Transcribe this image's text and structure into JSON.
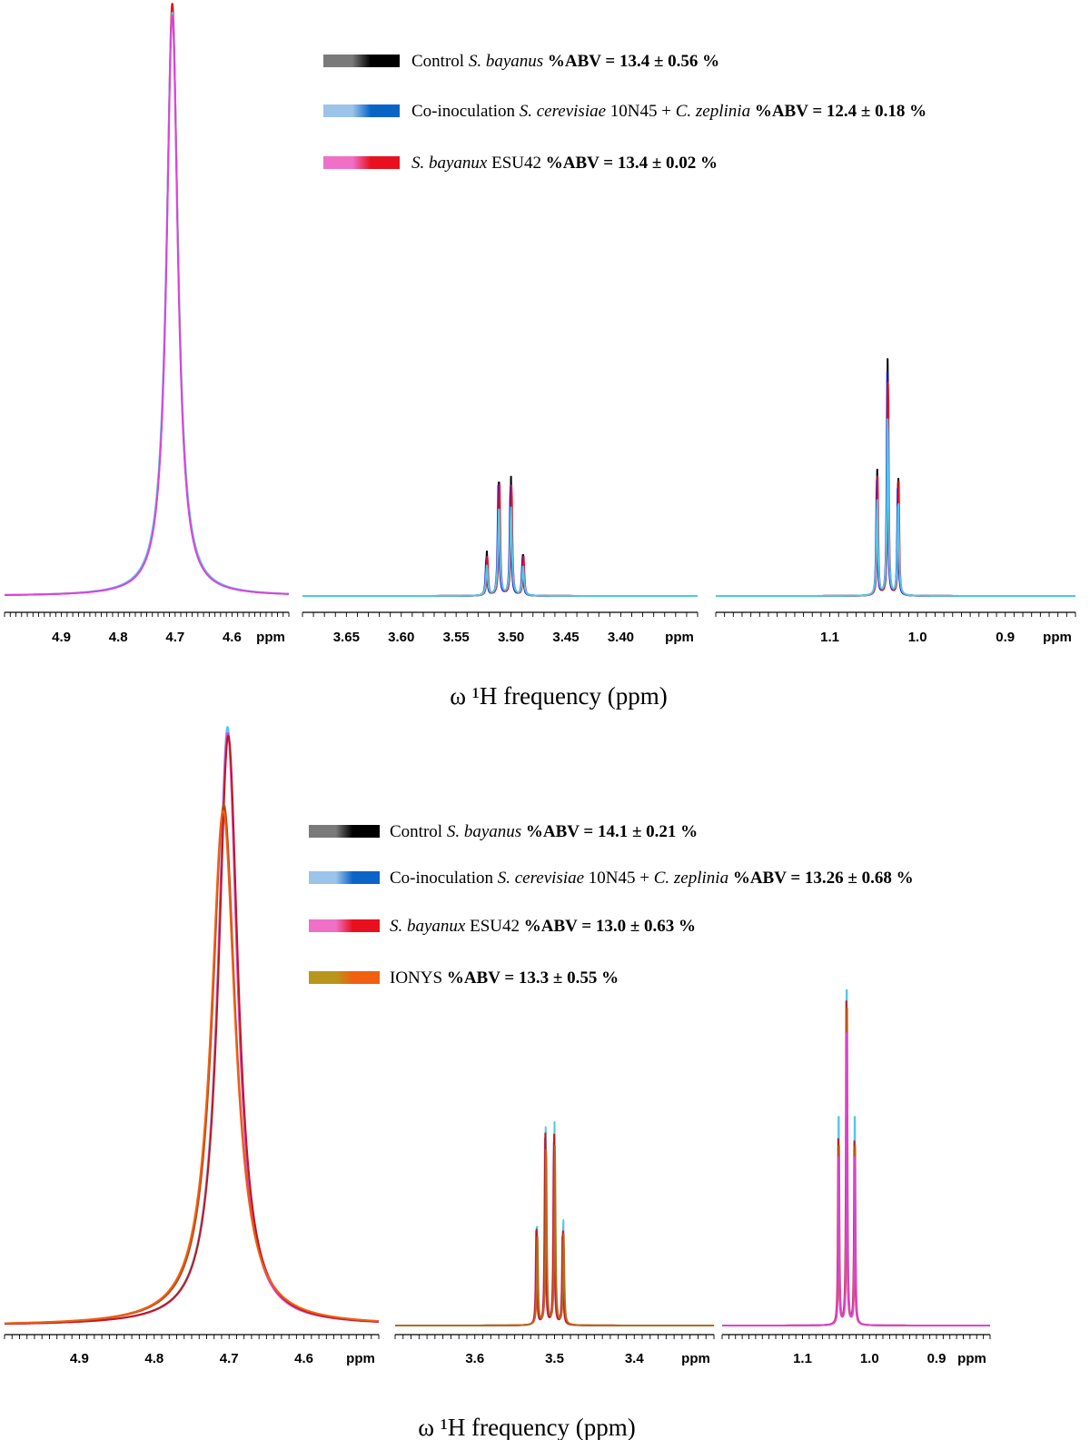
{
  "chart_data": [
    {
      "type": "line",
      "title": "",
      "xlabel": "ω ¹H frequency (ppm)",
      "ylabel": "",
      "grid": false,
      "legend_position": "top-right",
      "series": [
        {
          "name": "Control S. bayanus %ABV = 13.4 ± 0.56 %",
          "color": "#000000"
        },
        {
          "name": "Co-inoculation S. cerevisiae 10N45 + C. zeplinia %ABV = 12.4 ± 0.18 %",
          "color": "#0a64c8"
        },
        {
          "name": "S. bayanux ESU42 %ABV = 13.4 ± 0.02 %",
          "color": "#e8101e"
        }
      ],
      "legend": [
        {
          "parts": [
            {
              "t": "Control ",
              "s": "n"
            },
            {
              "t": "S. bayanus",
              "s": "i"
            },
            {
              "t": " %ABV = 13.4 ± 0.56 %",
              "s": "b"
            }
          ],
          "colors": [
            "#7a7a7a",
            "#000000"
          ]
        },
        {
          "parts": [
            {
              "t": "Co-inoculation ",
              "s": "n"
            },
            {
              "t": "S. cerevisiae",
              "s": "i"
            },
            {
              "t": " 10N45 + ",
              "s": "n"
            },
            {
              "t": "C. zeplinia",
              "s": "i"
            },
            {
              "t": " %ABV = 12.4 ± 0.18 %",
              "s": "b"
            }
          ],
          "colors": [
            "#9cc4ea",
            "#0a64c8"
          ]
        },
        {
          "parts": [
            {
              "t": "S. bayanux",
              "s": "i"
            },
            {
              "t": " ESU42 ",
              "s": "n"
            },
            {
              "t": "%ABV = 13.4 ± 0.02 %",
              "s": "b"
            }
          ],
          "colors": [
            "#f070c8",
            "#e8101e"
          ]
        }
      ],
      "panels": [
        {
          "xrange": [
            4.5,
            5.0
          ],
          "ticks": [
            "4.9",
            "4.8",
            "4.7",
            "4.6",
            "ppm"
          ],
          "y_max": 1.0,
          "traces": [
            {
              "color": "#e8101e",
              "peaks": [
                {
                  "x": 4.705,
                  "h": 1.0,
                  "w": 0.012
                }
              ]
            },
            {
              "color": "#4fc8e8",
              "peaks": [
                {
                  "x": 4.705,
                  "h": 0.985,
                  "w": 0.0125
                }
              ]
            },
            {
              "color": "#e040d8",
              "peaks": [
                {
                  "x": 4.705,
                  "h": 0.98,
                  "w": 0.012
                }
              ]
            }
          ]
        },
        {
          "xrange": [
            3.33,
            3.69
          ],
          "ticks": [
            "3.65",
            "3.60",
            "3.55",
            "3.50",
            "3.45",
            "3.40",
            "ppm"
          ],
          "y_max": 1.0,
          "traces": [
            {
              "color": "#000000",
              "peaks": [
                {
                  "x": 3.522,
                  "h": 0.074,
                  "w": 0.0008
                },
                {
                  "x": 3.511,
                  "h": 0.202,
                  "w": 0.0008
                },
                {
                  "x": 3.5,
                  "h": 0.2,
                  "w": 0.0008
                },
                {
                  "x": 3.489,
                  "h": 0.072,
                  "w": 0.0008
                }
              ]
            },
            {
              "color": "#1a1ad8",
              "peaks": [
                {
                  "x": 3.5225,
                  "h": 0.065,
                  "w": 0.0008
                },
                {
                  "x": 3.5115,
                  "h": 0.188,
                  "w": 0.0008
                },
                {
                  "x": 3.5005,
                  "h": 0.186,
                  "w": 0.0008
                },
                {
                  "x": 3.4895,
                  "h": 0.064,
                  "w": 0.0008
                }
              ]
            },
            {
              "color": "#e8101e",
              "peaks": [
                {
                  "x": 3.5215,
                  "h": 0.066,
                  "w": 0.0008
                },
                {
                  "x": 3.5105,
                  "h": 0.19,
                  "w": 0.0008
                },
                {
                  "x": 3.4995,
                  "h": 0.188,
                  "w": 0.0008
                },
                {
                  "x": 3.4885,
                  "h": 0.066,
                  "w": 0.0008
                }
              ]
            },
            {
              "color": "#4fc8e8",
              "peaks": [
                {
                  "x": 3.522,
                  "h": 0.05,
                  "w": 0.001
                },
                {
                  "x": 3.511,
                  "h": 0.15,
                  "w": 0.001
                },
                {
                  "x": 3.5,
                  "h": 0.148,
                  "w": 0.001
                },
                {
                  "x": 3.489,
                  "h": 0.05,
                  "w": 0.001
                }
              ]
            }
          ]
        },
        {
          "xrange": [
            0.82,
            1.23
          ],
          "ticks": [
            "1.1",
            "1.0",
            "0.9",
            "ppm"
          ],
          "y_max": 1.0,
          "traces": [
            {
              "color": "#000000",
              "peaks": [
                {
                  "x": 1.046,
                  "h": 0.212,
                  "w": 0.0008
                },
                {
                  "x": 1.034,
                  "h": 0.406,
                  "w": 0.0008
                },
                {
                  "x": 1.022,
                  "h": 0.207,
                  "w": 0.0008
                }
              ]
            },
            {
              "color": "#1a1ad8",
              "peaks": [
                {
                  "x": 1.0465,
                  "h": 0.196,
                  "w": 0.0008
                },
                {
                  "x": 1.0345,
                  "h": 0.379,
                  "w": 0.0008
                },
                {
                  "x": 1.0225,
                  "h": 0.193,
                  "w": 0.0008
                }
              ]
            },
            {
              "color": "#e8101e",
              "peaks": [
                {
                  "x": 1.0455,
                  "h": 0.2,
                  "w": 0.0008
                },
                {
                  "x": 1.0335,
                  "h": 0.372,
                  "w": 0.0008
                },
                {
                  "x": 1.0215,
                  "h": 0.198,
                  "w": 0.0008
                }
              ]
            },
            {
              "color": "#4fc8e8",
              "peaks": [
                {
                  "x": 1.046,
                  "h": 0.16,
                  "w": 0.001
                },
                {
                  "x": 1.034,
                  "h": 0.3,
                  "w": 0.001
                },
                {
                  "x": 1.022,
                  "h": 0.158,
                  "w": 0.001
                }
              ]
            }
          ]
        }
      ]
    },
    {
      "type": "line",
      "title": "",
      "xlabel": "ω ¹H frequency (ppm)",
      "ylabel": "",
      "grid": false,
      "legend_position": "top-right",
      "series": [
        {
          "name": "Control S. bayanus %ABV = 14.1 ± 0.21 %",
          "color": "#000000"
        },
        {
          "name": "Co-inoculation S. cerevisiae 10N45 + C. zeplinia %ABV = 13.26 ± 0.68 %",
          "color": "#0a64c8"
        },
        {
          "name": "S. bayanux ESU42 %ABV = 13.0 ± 0.63 %",
          "color": "#e8101e"
        },
        {
          "name": "IONYS %ABV = 13.3 ± 0.55 %",
          "color": "#f06010"
        }
      ],
      "legend": [
        {
          "parts": [
            {
              "t": "Control ",
              "s": "n"
            },
            {
              "t": "S. bayanus",
              "s": "i"
            },
            {
              "t": " %ABV = 14.1 ± 0.21 %",
              "s": "b"
            }
          ],
          "colors": [
            "#7a7a7a",
            "#000000"
          ]
        },
        {
          "parts": [
            {
              "t": "Co-inoculation ",
              "s": "n"
            },
            {
              "t": "S. cerevisiae",
              "s": "i"
            },
            {
              "t": " 10N45 + ",
              "s": "n"
            },
            {
              "t": "C. zeplinia",
              "s": "i"
            },
            {
              "t": " %ABV = 13.26 ± 0.68 %",
              "s": "b"
            }
          ],
          "colors": [
            "#9cc4ea",
            "#0a64c8"
          ]
        },
        {
          "parts": [
            {
              "t": "S. bayanux",
              "s": "i"
            },
            {
              "t": " ESU42 ",
              "s": "n"
            },
            {
              "t": "%ABV = 13.0 ± 0.63 %",
              "s": "b"
            }
          ],
          "colors": [
            "#f070c8",
            "#e8101e"
          ]
        },
        {
          "parts": [
            {
              "t": "IONYS ",
              "s": "n"
            },
            {
              "t": "%ABV = 13.3 ± 0.55 %",
              "s": "b"
            }
          ],
          "colors": [
            "#b8961a",
            "#f06010"
          ]
        }
      ],
      "panels": [
        {
          "xrange": [
            4.5,
            5.0
          ],
          "ticks": [
            "4.9",
            "4.8",
            "4.7",
            "4.6",
            "ppm"
          ],
          "y_max": 1.0,
          "traces": [
            {
              "color": "#4fc8e8",
              "peaks": [
                {
                  "x": 4.702,
                  "h": 1.0,
                  "w": 0.016
                }
              ]
            },
            {
              "color": "#e040d8",
              "peaks": [
                {
                  "x": 4.702,
                  "h": 0.99,
                  "w": 0.0158
                }
              ]
            },
            {
              "color": "#c01818",
              "peaks": [
                {
                  "x": 4.701,
                  "h": 0.985,
                  "w": 0.0162
                }
              ]
            },
            {
              "color": "#b84818",
              "peaks": [
                {
                  "x": 4.707,
                  "h": 0.87,
                  "w": 0.019
                }
              ]
            },
            {
              "color": "#f06010",
              "peaks": [
                {
                  "x": 4.708,
                  "h": 0.86,
                  "w": 0.0195
                }
              ]
            }
          ]
        },
        {
          "xrange": [
            3.3,
            3.7
          ],
          "ticks": [
            "3.6",
            "3.5",
            "3.4",
            "ppm"
          ],
          "y_max": 1.0,
          "traces": [
            {
              "color": "#4fc8e8",
              "peaks": [
                {
                  "x": 3.522,
                  "h": 0.175,
                  "w": 0.0008
                },
                {
                  "x": 3.511,
                  "h": 0.335,
                  "w": 0.0008
                },
                {
                  "x": 3.5,
                  "h": 0.337,
                  "w": 0.0008
                },
                {
                  "x": 3.489,
                  "h": 0.177,
                  "w": 0.0008
                }
              ]
            },
            {
              "color": "#e040d8",
              "peaks": [
                {
                  "x": 3.523,
                  "h": 0.158,
                  "w": 0.0008
                },
                {
                  "x": 3.512,
                  "h": 0.31,
                  "w": 0.0008
                },
                {
                  "x": 3.501,
                  "h": 0.31,
                  "w": 0.0008
                },
                {
                  "x": 3.49,
                  "h": 0.158,
                  "w": 0.0008
                }
              ]
            },
            {
              "color": "#c01818",
              "peaks": [
                {
                  "x": 3.5225,
                  "h": 0.165,
                  "w": 0.0008
                },
                {
                  "x": 3.5115,
                  "h": 0.32,
                  "w": 0.0008
                },
                {
                  "x": 3.5005,
                  "h": 0.318,
                  "w": 0.0008
                },
                {
                  "x": 3.4895,
                  "h": 0.162,
                  "w": 0.0008
                }
              ]
            },
            {
              "color": "#b86a1a",
              "peaks": [
                {
                  "x": 3.5215,
                  "h": 0.15,
                  "w": 0.0009
                },
                {
                  "x": 3.5105,
                  "h": 0.3,
                  "w": 0.0009
                },
                {
                  "x": 3.4995,
                  "h": 0.298,
                  "w": 0.0009
                },
                {
                  "x": 3.4885,
                  "h": 0.15,
                  "w": 0.0009
                }
              ]
            }
          ]
        },
        {
          "xrange": [
            0.82,
            1.22
          ],
          "ticks": [
            "1.1",
            "1.0",
            "0.9",
            "ppm"
          ],
          "y_max": 1.0,
          "traces": [
            {
              "color": "#4fc8e8",
              "peaks": [
                {
                  "x": 1.046,
                  "h": 0.372,
                  "w": 0.0008
                },
                {
                  "x": 1.034,
                  "h": 0.6,
                  "w": 0.0008
                },
                {
                  "x": 1.022,
                  "h": 0.372,
                  "w": 0.0008
                }
              ]
            },
            {
              "color": "#c01818",
              "peaks": [
                {
                  "x": 1.0465,
                  "h": 0.322,
                  "w": 0.0008
                },
                {
                  "x": 1.0345,
                  "h": 0.562,
                  "w": 0.0008
                },
                {
                  "x": 1.0225,
                  "h": 0.318,
                  "w": 0.0008
                }
              ]
            },
            {
              "color": "#b86a1a",
              "peaks": [
                {
                  "x": 1.0455,
                  "h": 0.31,
                  "w": 0.0008
                },
                {
                  "x": 1.0335,
                  "h": 0.55,
                  "w": 0.0008
                },
                {
                  "x": 1.0215,
                  "h": 0.31,
                  "w": 0.0008
                }
              ]
            },
            {
              "color": "#e040d8",
              "peaks": [
                {
                  "x": 1.046,
                  "h": 0.3,
                  "w": 0.0008
                },
                {
                  "x": 1.034,
                  "h": 0.523,
                  "w": 0.0008
                },
                {
                  "x": 1.022,
                  "h": 0.3,
                  "w": 0.0008
                }
              ]
            }
          ]
        }
      ]
    }
  ]
}
